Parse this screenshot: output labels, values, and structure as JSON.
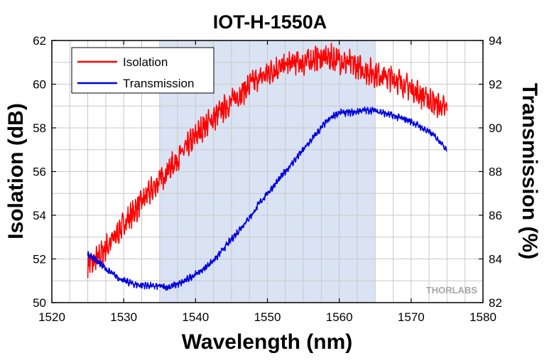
{
  "chart_data": {
    "type": "line",
    "title": "IOT-H-1550A",
    "xlabel": "Wavelength (nm)",
    "ylabel": "Isolation (dB)",
    "y2label": "Transmission (%)",
    "xlim": [
      1520,
      1580
    ],
    "ylim": [
      50,
      62
    ],
    "y2lim": [
      82,
      94
    ],
    "x_ticks": [
      1520,
      1530,
      1540,
      1550,
      1560,
      1570,
      1580
    ],
    "y_ticks": [
      50,
      52,
      54,
      56,
      58,
      60,
      62
    ],
    "y2_ticks": [
      82,
      84,
      86,
      88,
      90,
      92,
      94
    ],
    "grid": true,
    "legend_position": "top-left",
    "shaded_region": {
      "x_from": 1535,
      "x_to": 1565,
      "color": "#dae3f3"
    },
    "series": [
      {
        "name": "Isolation",
        "axis": "left",
        "color": "#ff0000",
        "x": [
          1525,
          1526,
          1527,
          1528,
          1529,
          1530,
          1531,
          1532,
          1533,
          1534,
          1535,
          1536,
          1537,
          1538,
          1539,
          1540,
          1541,
          1542,
          1543,
          1544,
          1545,
          1546,
          1547,
          1548,
          1549,
          1550,
          1551,
          1552,
          1553,
          1554,
          1555,
          1556,
          1557,
          1558,
          1559,
          1560,
          1561,
          1562,
          1563,
          1564,
          1565,
          1566,
          1567,
          1568,
          1569,
          1570,
          1571,
          1572,
          1573,
          1574,
          1575
        ],
        "y": [
          51.7,
          51.9,
          52.3,
          52.7,
          53.1,
          53.6,
          54.0,
          54.4,
          54.8,
          55.2,
          55.6,
          56.0,
          56.4,
          56.8,
          57.2,
          57.6,
          58.0,
          58.3,
          58.6,
          58.9,
          59.2,
          59.5,
          59.8,
          60.1,
          60.3,
          60.5,
          60.7,
          60.8,
          60.9,
          61.0,
          61.0,
          61.1,
          61.2,
          61.2,
          61.2,
          61.1,
          61.0,
          60.9,
          60.7,
          60.6,
          60.5,
          60.4,
          60.3,
          60.2,
          60.0,
          59.8,
          59.6,
          59.4,
          59.2,
          59.0,
          58.8
        ]
      },
      {
        "name": "Transmission",
        "axis": "right",
        "color": "#0000dd",
        "x": [
          1525,
          1526,
          1527,
          1528,
          1529,
          1530,
          1531,
          1532,
          1533,
          1534,
          1535,
          1536,
          1537,
          1538,
          1539,
          1540,
          1541,
          1542,
          1543,
          1544,
          1545,
          1546,
          1547,
          1548,
          1549,
          1550,
          1551,
          1552,
          1553,
          1554,
          1555,
          1556,
          1557,
          1558,
          1559,
          1560,
          1561,
          1562,
          1563,
          1564,
          1565,
          1566,
          1567,
          1568,
          1569,
          1570,
          1571,
          1572,
          1573,
          1574,
          1575
        ],
        "y": [
          84.2,
          84.0,
          83.7,
          83.4,
          83.2,
          83.0,
          82.9,
          82.8,
          82.8,
          82.75,
          82.75,
          82.7,
          82.8,
          82.9,
          83.1,
          83.3,
          83.5,
          83.8,
          84.1,
          84.5,
          84.9,
          85.3,
          85.7,
          86.1,
          86.6,
          87.0,
          87.4,
          87.8,
          88.2,
          88.6,
          89.0,
          89.4,
          89.8,
          90.2,
          90.5,
          90.7,
          90.7,
          90.7,
          90.8,
          90.8,
          90.8,
          90.7,
          90.6,
          90.5,
          90.4,
          90.3,
          90.1,
          89.9,
          89.7,
          89.4,
          89.0
        ]
      }
    ]
  },
  "watermark": "THORLABS"
}
